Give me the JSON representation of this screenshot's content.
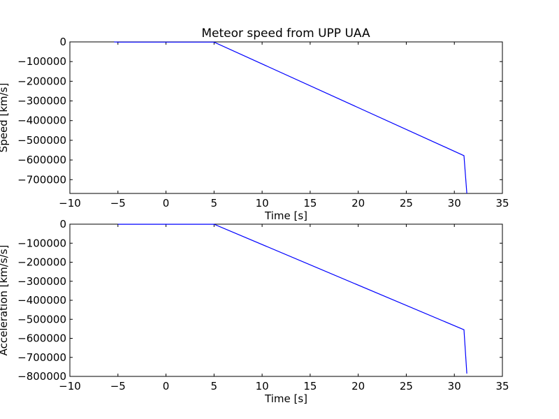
{
  "figure_title": "Meteor speed from  UPP UAA",
  "chart_data": [
    {
      "type": "line",
      "title": "Meteor speed from  UPP UAA",
      "xlabel": "Time [s]",
      "ylabel": "Speed [km/s]",
      "xlim": [
        -10,
        35
      ],
      "ylim": [
        -770000,
        0
      ],
      "xticks": [
        -10,
        -5,
        0,
        5,
        10,
        15,
        20,
        25,
        30,
        35
      ],
      "xtick_labels": [
        "−10",
        "−5",
        "0",
        "5",
        "10",
        "15",
        "20",
        "25",
        "30",
        "35"
      ],
      "yticks": [
        0,
        -100000,
        -200000,
        -300000,
        -400000,
        -500000,
        -600000,
        -700000
      ],
      "ytick_labels": [
        "0",
        "−100000",
        "−200000",
        "−300000",
        "−400000",
        "−500000",
        "−600000",
        "−700000"
      ],
      "grid": false,
      "color": "#0000ff",
      "series": [
        {
          "x": [
            -5.4,
            -5.0,
            5.0,
            31.0,
            31.3
          ],
          "y": [
            0,
            -1000,
            -1000,
            -578000,
            -770000
          ]
        }
      ]
    },
    {
      "type": "line",
      "title": "",
      "xlabel": "Time [s]",
      "ylabel": "Acceleration [km/s/s]",
      "xlim": [
        -10,
        35
      ],
      "ylim": [
        -800000,
        0
      ],
      "xticks": [
        -10,
        -5,
        0,
        5,
        10,
        15,
        20,
        25,
        30,
        35
      ],
      "xtick_labels": [
        "−10",
        "−5",
        "0",
        "5",
        "10",
        "15",
        "20",
        "25",
        "30",
        "35"
      ],
      "yticks": [
        0,
        -100000,
        -200000,
        -300000,
        -400000,
        -500000,
        -600000,
        -700000,
        -800000
      ],
      "ytick_labels": [
        "0",
        "−100000",
        "−200000",
        "−300000",
        "−400000",
        "−500000",
        "−600000",
        "−700000",
        "−800000"
      ],
      "grid": false,
      "color": "#0000ff",
      "series": [
        {
          "x": [
            -5.0,
            5.0,
            31.0,
            31.3
          ],
          "y": [
            -500,
            -500,
            -555000,
            -785000
          ]
        }
      ]
    }
  ]
}
